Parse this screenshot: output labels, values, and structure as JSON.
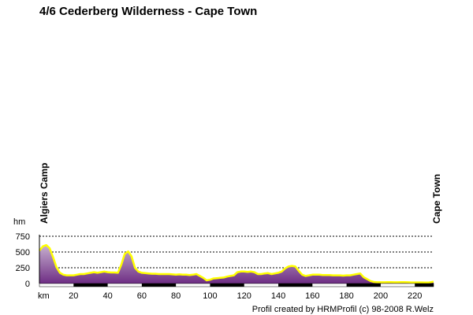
{
  "chart_data": {
    "type": "area",
    "title": "4/6 Cederberg Wilderness - Cape Town",
    "ylabel": "hm",
    "xlabel": "km",
    "xlim": [
      0,
      231
    ],
    "ylim": [
      0,
      750
    ],
    "y_ticks": [
      "0",
      "250",
      "500",
      "750"
    ],
    "y_tick_values": [
      0,
      250,
      500,
      750
    ],
    "x_ticks": [
      "20",
      "40",
      "60",
      "80",
      "100",
      "120",
      "140",
      "160",
      "180",
      "200",
      "220"
    ],
    "x_tick_values": [
      20,
      40,
      60,
      80,
      100,
      120,
      140,
      160,
      180,
      200,
      220
    ],
    "grid": true,
    "start_label": "Algiers Camp",
    "end_label": "Cape Town",
    "series": [
      {
        "x": [
          0,
          2,
          4,
          6,
          8,
          10,
          12,
          14,
          16,
          18,
          20,
          22,
          24,
          26,
          28,
          30,
          32,
          34,
          36,
          38,
          40,
          42,
          44,
          46,
          48,
          50,
          52,
          54,
          56,
          58,
          60,
          62,
          64,
          66,
          68,
          70,
          72,
          74,
          76,
          78,
          80,
          82,
          84,
          86,
          88,
          90,
          92,
          94,
          96,
          98,
          100,
          102,
          104,
          106,
          108,
          110,
          112,
          114,
          116,
          118,
          120,
          122,
          124,
          126,
          128,
          130,
          132,
          134,
          136,
          138,
          140,
          142,
          144,
          146,
          148,
          150,
          152,
          154,
          156,
          158,
          160,
          162,
          164,
          166,
          168,
          170,
          172,
          174,
          176,
          178,
          180,
          182,
          184,
          186,
          188,
          190,
          192,
          194,
          196,
          198,
          200,
          202,
          204,
          206,
          208,
          210,
          212,
          214,
          216,
          218,
          220,
          222,
          224,
          226,
          228,
          231
        ],
        "y": [
          520,
          590,
          610,
          560,
          420,
          260,
          170,
          140,
          130,
          130,
          130,
          140,
          150,
          150,
          160,
          170,
          180,
          170,
          180,
          190,
          180,
          175,
          175,
          170,
          300,
          470,
          510,
          430,
          250,
          190,
          170,
          165,
          160,
          155,
          155,
          150,
          150,
          150,
          150,
          145,
          140,
          145,
          140,
          140,
          135,
          140,
          150,
          120,
          90,
          50,
          60,
          80,
          85,
          90,
          95,
          110,
          120,
          130,
          180,
          190,
          190,
          185,
          190,
          180,
          150,
          150,
          160,
          165,
          150,
          160,
          170,
          190,
          240,
          270,
          280,
          270,
          200,
          140,
          120,
          130,
          140,
          140,
          140,
          135,
          135,
          135,
          130,
          130,
          130,
          125,
          130,
          130,
          140,
          150,
          160,
          100,
          70,
          40,
          25,
          20,
          20,
          20,
          22,
          22,
          20,
          20,
          22,
          22,
          20,
          18,
          18,
          18,
          18,
          16,
          15,
          30
        ]
      }
    ]
  },
  "footer": {
    "credit": "Profil created by HRMProfil (c) 98-2008 R.Welz"
  },
  "colors": {
    "profile_line": "#ffff00",
    "fill_top": "#c7b0cf",
    "fill_bottom": "#6e2d84",
    "axis": "#000000"
  }
}
